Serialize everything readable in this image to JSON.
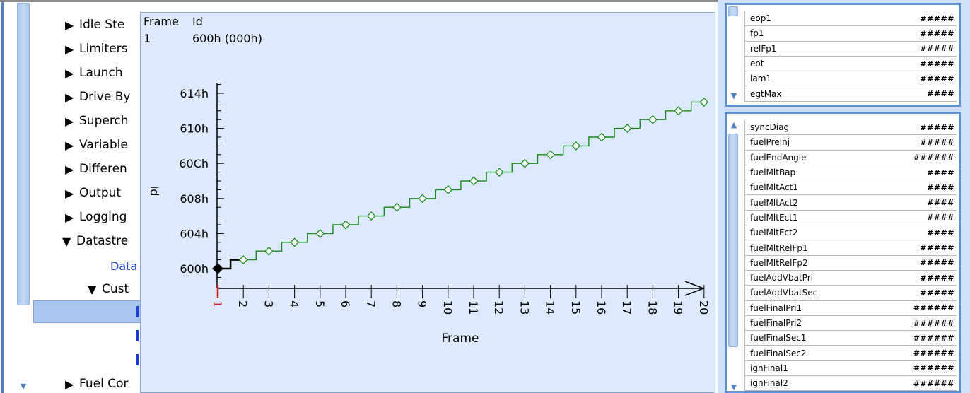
{
  "tree": {
    "items": [
      {
        "label": "Idle Ste",
        "expanded": false
      },
      {
        "label": "Limiters",
        "expanded": false
      },
      {
        "label": "Launch",
        "expanded": false
      },
      {
        "label": "Drive By",
        "expanded": false
      },
      {
        "label": "Superch",
        "expanded": false
      },
      {
        "label": "Variable",
        "expanded": false
      },
      {
        "label": "Differen",
        "expanded": false
      },
      {
        "label": "Output",
        "expanded": false
      },
      {
        "label": "Logging",
        "expanded": false
      },
      {
        "label": "Datastre",
        "expanded": true
      },
      {
        "label": "Data",
        "expanded": null
      },
      {
        "label": "Cust",
        "expanded": true
      },
      {
        "label": "Fuel Cor",
        "expanded": false
      }
    ]
  },
  "plot": {
    "header": {
      "frame_label": "Frame",
      "id_label": "Id",
      "frame_value": "1",
      "id_value": "600h (000h)"
    },
    "colors": {
      "series": "#1a8a1a",
      "current": "#000000",
      "axis": "#000000",
      "x_first_tick": "#cc2222"
    }
  },
  "chart_data": {
    "type": "line",
    "title": "",
    "xlabel": "Frame",
    "ylabel": "Id",
    "x_ticks": [
      "1",
      "2",
      "3",
      "4",
      "5",
      "6",
      "7",
      "8",
      "9",
      "10",
      "11",
      "12",
      "13",
      "14",
      "15",
      "16",
      "17",
      "18",
      "19",
      "20"
    ],
    "y_ticks": [
      "600h",
      "604h",
      "608h",
      "60Ch",
      "610h",
      "614h"
    ],
    "y_tick_values": [
      0,
      4,
      8,
      12,
      16,
      20
    ],
    "ylim": [
      -1,
      21
    ],
    "series": [
      {
        "x": [
          1,
          2,
          3,
          4,
          5,
          6,
          7,
          8,
          9,
          10,
          11,
          12,
          13,
          14,
          15,
          16,
          17,
          18,
          19,
          20
        ],
        "values": [
          0,
          1,
          2,
          3,
          4,
          5,
          6,
          7,
          8,
          9,
          10,
          11,
          12,
          13,
          14,
          15,
          16,
          17,
          18,
          19
        ]
      }
    ],
    "step": true,
    "current_point": {
      "x": 1,
      "y": 0
    },
    "grid": false
  },
  "signals_top": [
    {
      "name": "eop1",
      "value": "#####"
    },
    {
      "name": "fp1",
      "value": "#####"
    },
    {
      "name": "relFp1",
      "value": "#####"
    },
    {
      "name": "eot",
      "value": "#####"
    },
    {
      "name": "lam1",
      "value": "#####"
    },
    {
      "name": "egtMax",
      "value": "####"
    }
  ],
  "signals_bottom": [
    {
      "name": "syncDiag",
      "value": "#####"
    },
    {
      "name": "fuelPreInj",
      "value": "#####"
    },
    {
      "name": "fuelEndAngle",
      "value": "######"
    },
    {
      "name": "fuelMltBap",
      "value": "####"
    },
    {
      "name": "fuelMltAct1",
      "value": "####"
    },
    {
      "name": "fuelMltAct2",
      "value": "####"
    },
    {
      "name": "fuelMltEct1",
      "value": "####"
    },
    {
      "name": "fuelMltEct2",
      "value": "####"
    },
    {
      "name": "fuelMltRelFp1",
      "value": "#####"
    },
    {
      "name": "fuelMltRelFp2",
      "value": "#####"
    },
    {
      "name": "fuelAddVbatPri",
      "value": "#####"
    },
    {
      "name": "fuelAddVbatSec",
      "value": "#####"
    },
    {
      "name": "fuelFinalPri1",
      "value": "######"
    },
    {
      "name": "fuelFinalPri2",
      "value": "######"
    },
    {
      "name": "fuelFinalSec1",
      "value": "######"
    },
    {
      "name": "fuelFinalSec2",
      "value": "######"
    },
    {
      "name": "ignFinal1",
      "value": "######"
    },
    {
      "name": "ignFinal2",
      "value": "######"
    }
  ]
}
